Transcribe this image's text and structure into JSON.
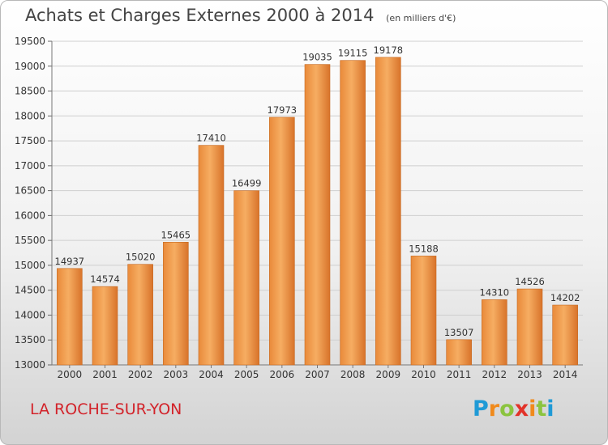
{
  "header": {
    "title": "Achats et Charges Externes 2000 à 2014",
    "subtitle": "(en milliers d'€)"
  },
  "footer": {
    "city": "LA ROCHE-SUR-YON",
    "logo": {
      "letters": [
        "P",
        "r",
        "o",
        "x",
        "i",
        "t",
        "i"
      ],
      "colors": [
        "#1f9ad6",
        "#f08a1c",
        "#8bc43f",
        "#e2332a",
        "#f08a1c",
        "#8bc43f",
        "#1f9ad6"
      ]
    }
  },
  "colors": {
    "bar": "#f29a48",
    "bar_light": "#f7b46a",
    "bar_dark": "#d9762a",
    "grid": "#cfcfcf",
    "text": "#333333"
  },
  "chart_data": {
    "type": "bar",
    "title": "Achats et Charges Externes 2000 à 2014",
    "subtitle": "(en milliers d'€)",
    "categories": [
      "2000",
      "2001",
      "2002",
      "2003",
      "2004",
      "2005",
      "2006",
      "2007",
      "2008",
      "2009",
      "2010",
      "2011",
      "2012",
      "2013",
      "2014"
    ],
    "values": [
      14937,
      14574,
      15020,
      15465,
      17410,
      16499,
      17973,
      19035,
      19115,
      19178,
      15188,
      13507,
      14310,
      14526,
      14202
    ],
    "ylim": [
      13000,
      19500
    ],
    "yticks": [
      13000,
      13500,
      14000,
      14500,
      15000,
      15500,
      16000,
      16500,
      17000,
      17500,
      18000,
      18500,
      19000,
      19500
    ],
    "grid": true
  }
}
